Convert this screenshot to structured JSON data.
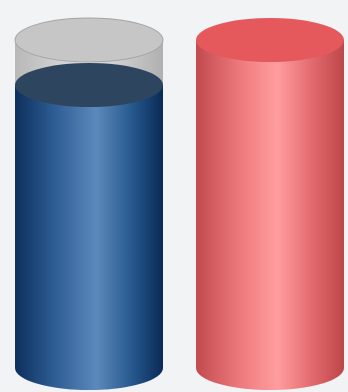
{
  "cylinders": [
    {
      "id": "blue",
      "fill_fraction": 0.83,
      "colors": {
        "glass_top": "#c8c8c8",
        "glass_rim": "#9a9a9a",
        "liquid_dark": "#0d2f5c",
        "liquid_mid": "#1a4a82",
        "liquid_light": "#5c89bb",
        "liquid_top": "#2e4560"
      }
    },
    {
      "id": "red",
      "fill_fraction": 1.0,
      "colors": {
        "body_dark": "#c84d50",
        "body_mid": "#e06a6d",
        "body_light": "#ff9b9c",
        "top": "#e5595d"
      }
    }
  ]
}
